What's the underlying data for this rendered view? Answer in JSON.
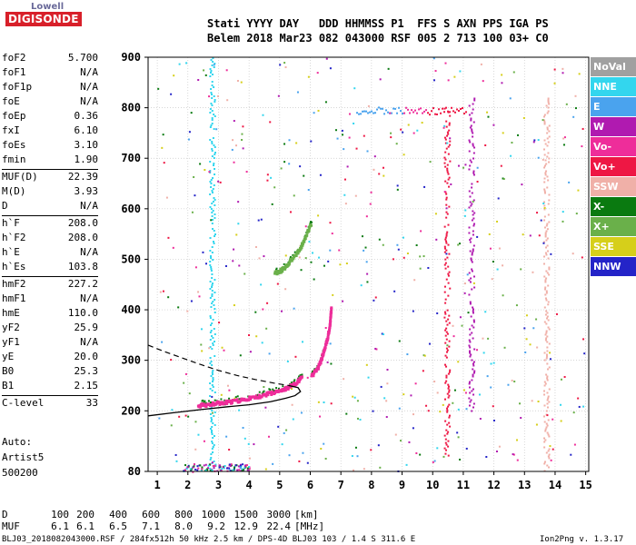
{
  "logo": {
    "line1": "Lowell",
    "line2": "DIGISONDE"
  },
  "header": {
    "line1": "Stati YYYY DAY   DDD HHMMSS P1  FFS S AXN PPS IGA PS",
    "line2": "Belem 2018 Mar23 082 043000 RSF 005 2 713 100 03+ C0"
  },
  "params": [
    {
      "label": "foF2",
      "value": "5.700"
    },
    {
      "label": "foF1",
      "value": "N/A"
    },
    {
      "label": "foF1p",
      "value": "N/A"
    },
    {
      "label": "foE",
      "value": "N/A"
    },
    {
      "label": "foEp",
      "value": "0.36"
    },
    {
      "label": "fxI",
      "value": "6.10"
    },
    {
      "label": "foEs",
      "value": "3.10"
    },
    {
      "label": "fmin",
      "value": "1.90"
    },
    {
      "label": "MUF(D)",
      "value": "22.39"
    },
    {
      "label": "M(D)",
      "value": "3.93"
    },
    {
      "label": "D",
      "value": "N/A"
    },
    {
      "label": "h`F",
      "value": "208.0"
    },
    {
      "label": "h`F2",
      "value": "208.0"
    },
    {
      "label": "h`E",
      "value": "N/A"
    },
    {
      "label": "h`Es",
      "value": "103.8"
    },
    {
      "label": "hmF2",
      "value": "227.2"
    },
    {
      "label": "hmF1",
      "value": "N/A"
    },
    {
      "label": "hmE",
      "value": "110.0"
    },
    {
      "label": "yF2",
      "value": "25.9"
    },
    {
      "label": "yF1",
      "value": "N/A"
    },
    {
      "label": "yE",
      "value": "20.0"
    },
    {
      "label": "B0",
      "value": "25.3"
    },
    {
      "label": "B1",
      "value": "2.15"
    },
    {
      "label": "C-level",
      "value": "33"
    }
  ],
  "auto": {
    "line1": "Auto:",
    "line2": "Artist5",
    "line3": "500200"
  },
  "legend": [
    {
      "label": "NoVal",
      "color": "#a0a0a0"
    },
    {
      "label": "NNE",
      "color": "#33d6ee"
    },
    {
      "label": "E",
      "color": "#4aa3ee"
    },
    {
      "label": "W",
      "color": "#b01ab0"
    },
    {
      "label": "Vo-",
      "color": "#ee2d9a"
    },
    {
      "label": "Vo+",
      "color": "#ee1744"
    },
    {
      "label": "SSW",
      "color": "#f0b0a8"
    },
    {
      "label": "X-",
      "color": "#0a7a10"
    },
    {
      "label": "X+",
      "color": "#6ab04a"
    },
    {
      "label": "SSE",
      "color": "#d6cf1a"
    },
    {
      "label": "NNW",
      "color": "#2424c8"
    }
  ],
  "muf_table": {
    "d_label": "D",
    "d_values": [
      "100",
      "200",
      "400",
      "600",
      "800",
      "1000",
      "1500",
      "3000",
      "[km]"
    ],
    "muf_label": "MUF",
    "muf_values": [
      "6.1",
      "6.1",
      "6.5",
      "7.1",
      "8.0",
      "9.2",
      "12.9",
      "22.4",
      "[MHz]"
    ]
  },
  "footer": {
    "left": "BLJ03_2018082043000.RSF / 284fx512h 50 kHz 2.5 km / DPS-4D BLJ03 103 / 1.4 S 311.6 E",
    "right": "Ion2Png v. 1.3.17"
  },
  "chart_data": {
    "type": "scatter",
    "title": "",
    "xlabel": "",
    "ylabel": "",
    "xlim": [
      0.7,
      15.1
    ],
    "ylim": [
      80,
      900
    ],
    "x_ticks": [
      1,
      2,
      3,
      4,
      5,
      6,
      7,
      8,
      9,
      10,
      11,
      12,
      13,
      14,
      15
    ],
    "y_ticks": [
      80,
      200,
      300,
      400,
      500,
      600,
      700,
      800,
      900
    ],
    "grid": true,
    "legend_position": "right",
    "traces": [
      {
        "name": "O-trace (F2 virtual height)",
        "color": "#ee2d9a",
        "x": [
          2.3,
          2.6,
          3.0,
          3.4,
          3.8,
          4.2,
          4.6,
          5.0,
          5.3,
          5.5,
          5.7
        ],
        "y": [
          213,
          215,
          218,
          221,
          225,
          230,
          236,
          243,
          250,
          258,
          268
        ]
      },
      {
        "name": "O-trace cusp",
        "color": "#ee2d9a",
        "x": [
          6.0,
          6.2,
          6.3,
          6.4,
          6.5,
          6.6,
          6.65
        ],
        "y": [
          270,
          285,
          300,
          320,
          340,
          370,
          410
        ]
      },
      {
        "name": "X-trace",
        "color": "#6ab04a",
        "x": [
          4.8,
          5.0,
          5.2,
          5.4,
          5.6,
          5.8,
          6.0
        ],
        "y": [
          475,
          480,
          490,
          505,
          520,
          545,
          575
        ]
      }
    ],
    "model_profile": {
      "color": "#000000",
      "x": [
        0.7,
        1.5,
        2.5,
        3.3,
        4.0,
        4.7,
        5.2,
        5.5,
        5.68,
        5.6,
        5.3
      ],
      "y": [
        190,
        196,
        203,
        208,
        212,
        218,
        225,
        230,
        238,
        246,
        250
      ]
    },
    "model_profile_dashed": {
      "color": "#000000",
      "x": [
        0.7,
        1.2,
        1.8,
        2.4,
        3.0,
        3.6,
        4.2,
        4.8,
        5.3
      ],
      "y": [
        330,
        318,
        305,
        292,
        280,
        270,
        262,
        255,
        250
      ]
    },
    "vertical_bands": [
      {
        "x": 2.78,
        "y": [
          80,
          900
        ],
        "color": "#33d6ee"
      },
      {
        "x": 10.45,
        "y": [
          110,
          800
        ],
        "color": "#ee1744"
      },
      {
        "x": 11.25,
        "y": [
          200,
          820
        ],
        "color": "#b01ab0"
      },
      {
        "x": 13.7,
        "y": [
          80,
          820
        ],
        "color": "#f0b0a8"
      }
    ],
    "horizontal_band": {
      "x": [
        7.5,
        11.1
      ],
      "y": 795,
      "color": "#4aa3ee"
    }
  }
}
